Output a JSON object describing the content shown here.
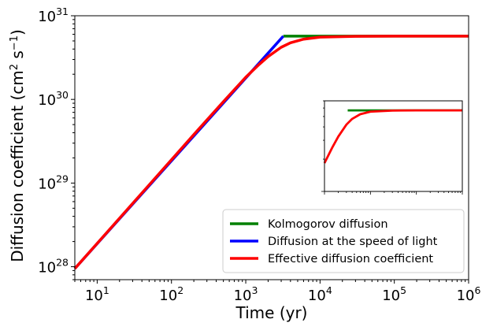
{
  "chart_data": {
    "type": "line",
    "title": "",
    "xlabel": "Time (yr)",
    "ylabel_main": "Diffusion coefficient (cm",
    "ylabel_sup1": "2",
    "ylabel_mid": " s",
    "ylabel_sup2": "−1",
    "ylabel_end": ")",
    "xscale": "log",
    "yscale": "log",
    "xlim": [
      5,
      1000000
    ],
    "ylim": [
      7e+27,
      1e+31
    ],
    "x_ticks": [
      {
        "base": "10",
        "exp": "1",
        "value": 10
      },
      {
        "base": "10",
        "exp": "2",
        "value": 100
      },
      {
        "base": "10",
        "exp": "3",
        "value": 1000
      },
      {
        "base": "10",
        "exp": "4",
        "value": 10000
      },
      {
        "base": "10",
        "exp": "5",
        "value": 100000
      },
      {
        "base": "10",
        "exp": "6",
        "value": 1000000
      }
    ],
    "y_ticks": [
      {
        "base": "10",
        "exp": "28",
        "value": 1e+28
      },
      {
        "base": "10",
        "exp": "29",
        "value": 1e+29
      },
      {
        "base": "10",
        "exp": "30",
        "value": 1e+30
      },
      {
        "base": "10",
        "exp": "31",
        "value": 1e+31
      }
    ],
    "legend_position": "lower-right",
    "series": [
      {
        "name": "Kolmogorov diffusion",
        "color": "#008000",
        "x": [
          3200,
          1000000
        ],
        "y": [
          5.7e+30,
          5.7e+30
        ]
      },
      {
        "name": "Diffusion at the speed of light",
        "color": "#0000ff",
        "x": [
          5,
          3200
        ],
        "y": [
          9.5e+27,
          5.7e+30
        ]
      },
      {
        "name": "Effective diffusion coefficient",
        "color": "#ff0000",
        "x": [
          5,
          50,
          200,
          500,
          1000,
          1500,
          2000,
          3000,
          4000,
          6000,
          10000,
          30000,
          100000,
          1000000
        ],
        "y": [
          9.5e+27,
          9.5e+28,
          3.8e+29,
          9.4e+29,
          1.84e+30,
          2.6e+30,
          3.25e+30,
          4.2e+30,
          4.75e+30,
          5.25e+30,
          5.55e+30,
          5.68e+30,
          5.7e+30,
          5.7e+30
        ]
      }
    ],
    "inset": {
      "xlim": [
        1000,
        1000000
      ],
      "ylim": [
        1e+30,
        7e+30
      ],
      "series_refs": [
        "Kolmogorov diffusion",
        "Diffusion at the speed of light",
        "Effective diffusion coefficient"
      ]
    }
  }
}
